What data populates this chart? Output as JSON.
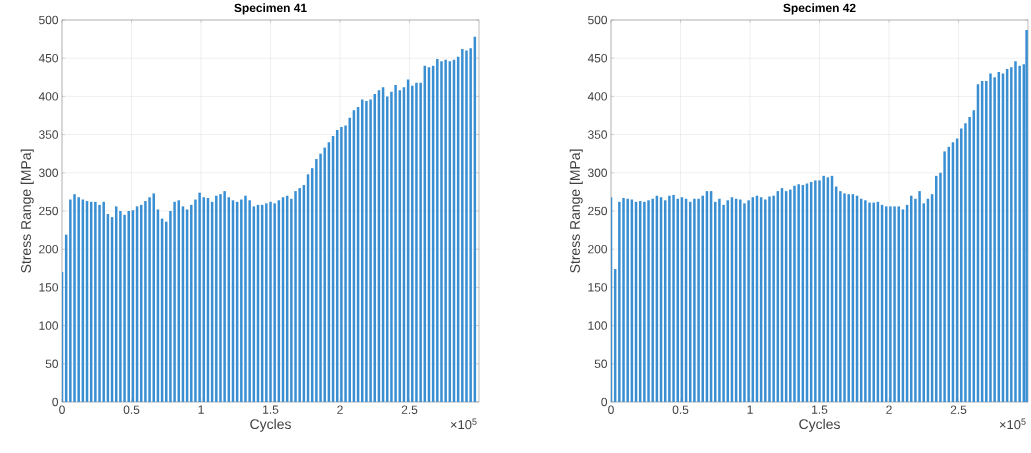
{
  "chart_data": [
    {
      "type": "bar",
      "title": "Specimen 41",
      "xlabel": "Cycles",
      "ylabel": "Stress Range [MPa]",
      "color": "#3a8fd3",
      "grid": true,
      "xlim": [
        0,
        3
      ],
      "ylim": [
        0,
        500
      ],
      "xticks": [
        0,
        0.5,
        1,
        1.5,
        2,
        2.5
      ],
      "yticks": [
        0,
        50,
        100,
        150,
        200,
        250,
        300,
        350,
        400,
        450,
        500
      ],
      "annotations": [
        "×10$^{5}$"
      ],
      "x": [
        0,
        0.03,
        0.06,
        0.09,
        0.12,
        0.15,
        0.18,
        0.21,
        0.24,
        0.27,
        0.3,
        0.33,
        0.36,
        0.39,
        0.42,
        0.45,
        0.48,
        0.51,
        0.54,
        0.57,
        0.6,
        0.63,
        0.66,
        0.69,
        0.72,
        0.75,
        0.78,
        0.81,
        0.84,
        0.87,
        0.9,
        0.93,
        0.96,
        0.99,
        1.02,
        1.05,
        1.08,
        1.11,
        1.14,
        1.17,
        1.2,
        1.23,
        1.26,
        1.29,
        1.32,
        1.35,
        1.38,
        1.41,
        1.44,
        1.47,
        1.5,
        1.53,
        1.56,
        1.59,
        1.62,
        1.65,
        1.68,
        1.71,
        1.74,
        1.77,
        1.8,
        1.83,
        1.86,
        1.89,
        1.92,
        1.95,
        1.98,
        2.01,
        2.04,
        2.07,
        2.1,
        2.13,
        2.16,
        2.19,
        2.22,
        2.25,
        2.28,
        2.31,
        2.34,
        2.37,
        2.4,
        2.43,
        2.46,
        2.49,
        2.52,
        2.55,
        2.58,
        2.61,
        2.64,
        2.67,
        2.7,
        2.73,
        2.76,
        2.79,
        2.82,
        2.85,
        2.88,
        2.91,
        2.94,
        2.97
      ],
      "values": [
        170,
        219,
        265,
        272,
        268,
        265,
        263,
        262,
        262,
        258,
        262,
        246,
        242,
        256,
        250,
        245,
        250,
        251,
        256,
        258,
        263,
        268,
        273,
        252,
        240,
        236,
        250,
        262,
        264,
        256,
        252,
        258,
        265,
        274,
        268,
        267,
        262,
        270,
        272,
        276,
        268,
        264,
        262,
        265,
        270,
        264,
        256,
        258,
        258,
        260,
        262,
        260,
        264,
        268,
        270,
        266,
        276,
        280,
        284,
        298,
        306,
        318,
        325,
        333,
        340,
        348,
        356,
        360,
        362,
        372,
        382,
        386,
        396,
        394,
        396,
        403,
        408,
        412,
        400,
        406,
        415,
        408,
        412,
        422,
        414,
        418,
        418,
        440,
        438,
        440,
        449,
        446,
        448,
        446,
        448,
        452,
        462,
        460,
        463,
        478
      ]
    },
    {
      "type": "bar",
      "title": "Specimen 42",
      "xlabel": "Cycles",
      "ylabel": "Stress Range [MPa]",
      "color": "#3a8fd3",
      "grid": true,
      "xlim": [
        0,
        3
      ],
      "ylim": [
        0,
        500
      ],
      "xticks": [
        0,
        0.5,
        1,
        1.5,
        2,
        2.5
      ],
      "yticks": [
        0,
        50,
        100,
        150,
        200,
        250,
        300,
        350,
        400,
        450,
        500
      ],
      "annotations": [
        "×10$^{5}$"
      ],
      "x": [
        0,
        0.03,
        0.06,
        0.09,
        0.12,
        0.15,
        0.18,
        0.21,
        0.24,
        0.27,
        0.3,
        0.33,
        0.36,
        0.39,
        0.42,
        0.45,
        0.48,
        0.51,
        0.54,
        0.57,
        0.6,
        0.63,
        0.66,
        0.69,
        0.72,
        0.75,
        0.78,
        0.81,
        0.84,
        0.87,
        0.9,
        0.93,
        0.96,
        0.99,
        1.02,
        1.05,
        1.08,
        1.11,
        1.14,
        1.17,
        1.2,
        1.23,
        1.26,
        1.29,
        1.32,
        1.35,
        1.38,
        1.41,
        1.44,
        1.47,
        1.5,
        1.53,
        1.56,
        1.59,
        1.62,
        1.65,
        1.68,
        1.71,
        1.74,
        1.77,
        1.8,
        1.83,
        1.86,
        1.89,
        1.92,
        1.95,
        1.98,
        2.01,
        2.04,
        2.07,
        2.1,
        2.13,
        2.16,
        2.19,
        2.22,
        2.25,
        2.28,
        2.31,
        2.34,
        2.37,
        2.4,
        2.43,
        2.46,
        2.49,
        2.52,
        2.55,
        2.58,
        2.61,
        2.64,
        2.67,
        2.7,
        2.73,
        2.76,
        2.79,
        2.82,
        2.85,
        2.88,
        2.91,
        2.94,
        2.97,
        2.99
      ],
      "values": [
        268,
        174,
        262,
        267,
        266,
        265,
        262,
        263,
        262,
        264,
        266,
        270,
        268,
        264,
        270,
        271,
        266,
        268,
        266,
        262,
        266,
        266,
        270,
        276,
        276,
        262,
        266,
        258,
        264,
        268,
        266,
        265,
        260,
        264,
        268,
        270,
        268,
        265,
        269,
        270,
        276,
        280,
        276,
        278,
        283,
        285,
        284,
        286,
        288,
        290,
        290,
        296,
        294,
        296,
        282,
        276,
        273,
        272,
        272,
        270,
        266,
        264,
        261,
        261,
        262,
        258,
        256,
        256,
        256,
        256,
        252,
        258,
        270,
        266,
        276,
        260,
        266,
        272,
        296,
        300,
        328,
        334,
        340,
        345,
        358,
        365,
        373,
        382,
        416,
        420,
        420,
        430,
        425,
        432,
        430,
        436,
        438,
        446,
        440,
        442,
        487
      ]
    }
  ]
}
